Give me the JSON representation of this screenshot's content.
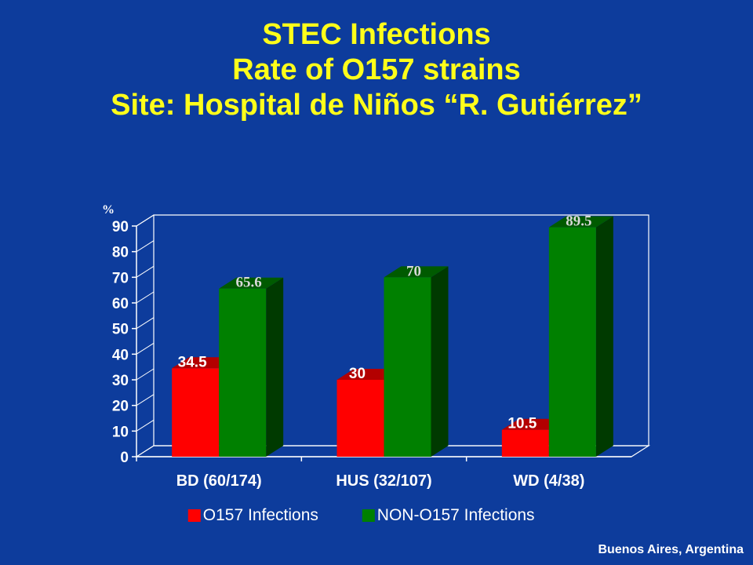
{
  "slide": {
    "title": "STEC Infections",
    "subtitle": "Rate of O157 strains",
    "site": "Site: Hospital de Niños “R. Gutiérrez”",
    "footer": "Buenos Aires, Argentina"
  },
  "chart_data": {
    "type": "bar",
    "ylabel": "%",
    "ylim": [
      0,
      90
    ],
    "yticks": [
      0,
      10,
      20,
      30,
      40,
      50,
      60,
      70,
      80,
      90
    ],
    "categories": [
      "BD (60/174)",
      "HUS (32/107)",
      "WD (4/38)"
    ],
    "series": [
      {
        "name": "O157 Infections",
        "values": [
          34.5,
          30,
          10.5
        ],
        "labels": [
          "34.5",
          "30",
          "10.5"
        ],
        "color": "#ff0000"
      },
      {
        "name": "NON-O157 Infections",
        "values": [
          65.6,
          70,
          89.5
        ],
        "labels": [
          "65.6",
          "70",
          "89.5"
        ],
        "color": "#008000"
      }
    ],
    "grid": false,
    "legend": "bottom",
    "style": "3d"
  }
}
